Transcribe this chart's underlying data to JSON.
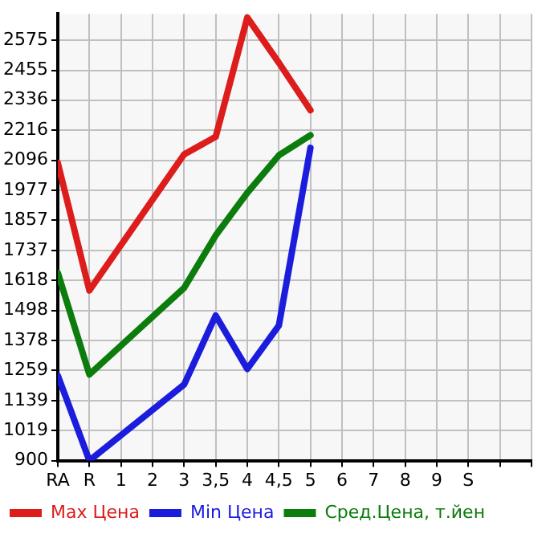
{
  "chart_data": {
    "type": "line",
    "categories": [
      "RA",
      "R",
      "1",
      "2",
      "3",
      "3,5",
      "4",
      "4,5",
      "5",
      "6",
      "7",
      "8",
      "9",
      "S",
      null
    ],
    "series": [
      {
        "name": "Max Цена",
        "color": "#dd1c1c",
        "values": [
          2086,
          1578,
          null,
          null,
          2120,
          2190,
          2665,
          2485,
          2296,
          null,
          null,
          null,
          null,
          null,
          null
        ]
      },
      {
        "name": "Min Цена",
        "color": "#1c1cdd",
        "values": [
          1239,
          900,
          null,
          null,
          1203,
          1478,
          1265,
          1438,
          2146,
          null,
          null,
          null,
          null,
          null,
          null
        ]
      },
      {
        "name": "Сред.Цена, т.йен",
        "color": "#0c7c0c",
        "values": [
          1648,
          1243,
          null,
          null,
          1588,
          1797,
          1967,
          2116,
          2196,
          null,
          null,
          null,
          null,
          null,
          null
        ]
      }
    ],
    "ylim": [
      900,
      2680
    ],
    "yticks": [
      900,
      1019,
      1139,
      1259,
      1378,
      1498,
      1618,
      1737,
      1857,
      1977,
      2096,
      2216,
      2336,
      2455,
      2575
    ],
    "grid": true,
    "legend": "bottom",
    "marker": "none",
    "line_style": "solid"
  }
}
